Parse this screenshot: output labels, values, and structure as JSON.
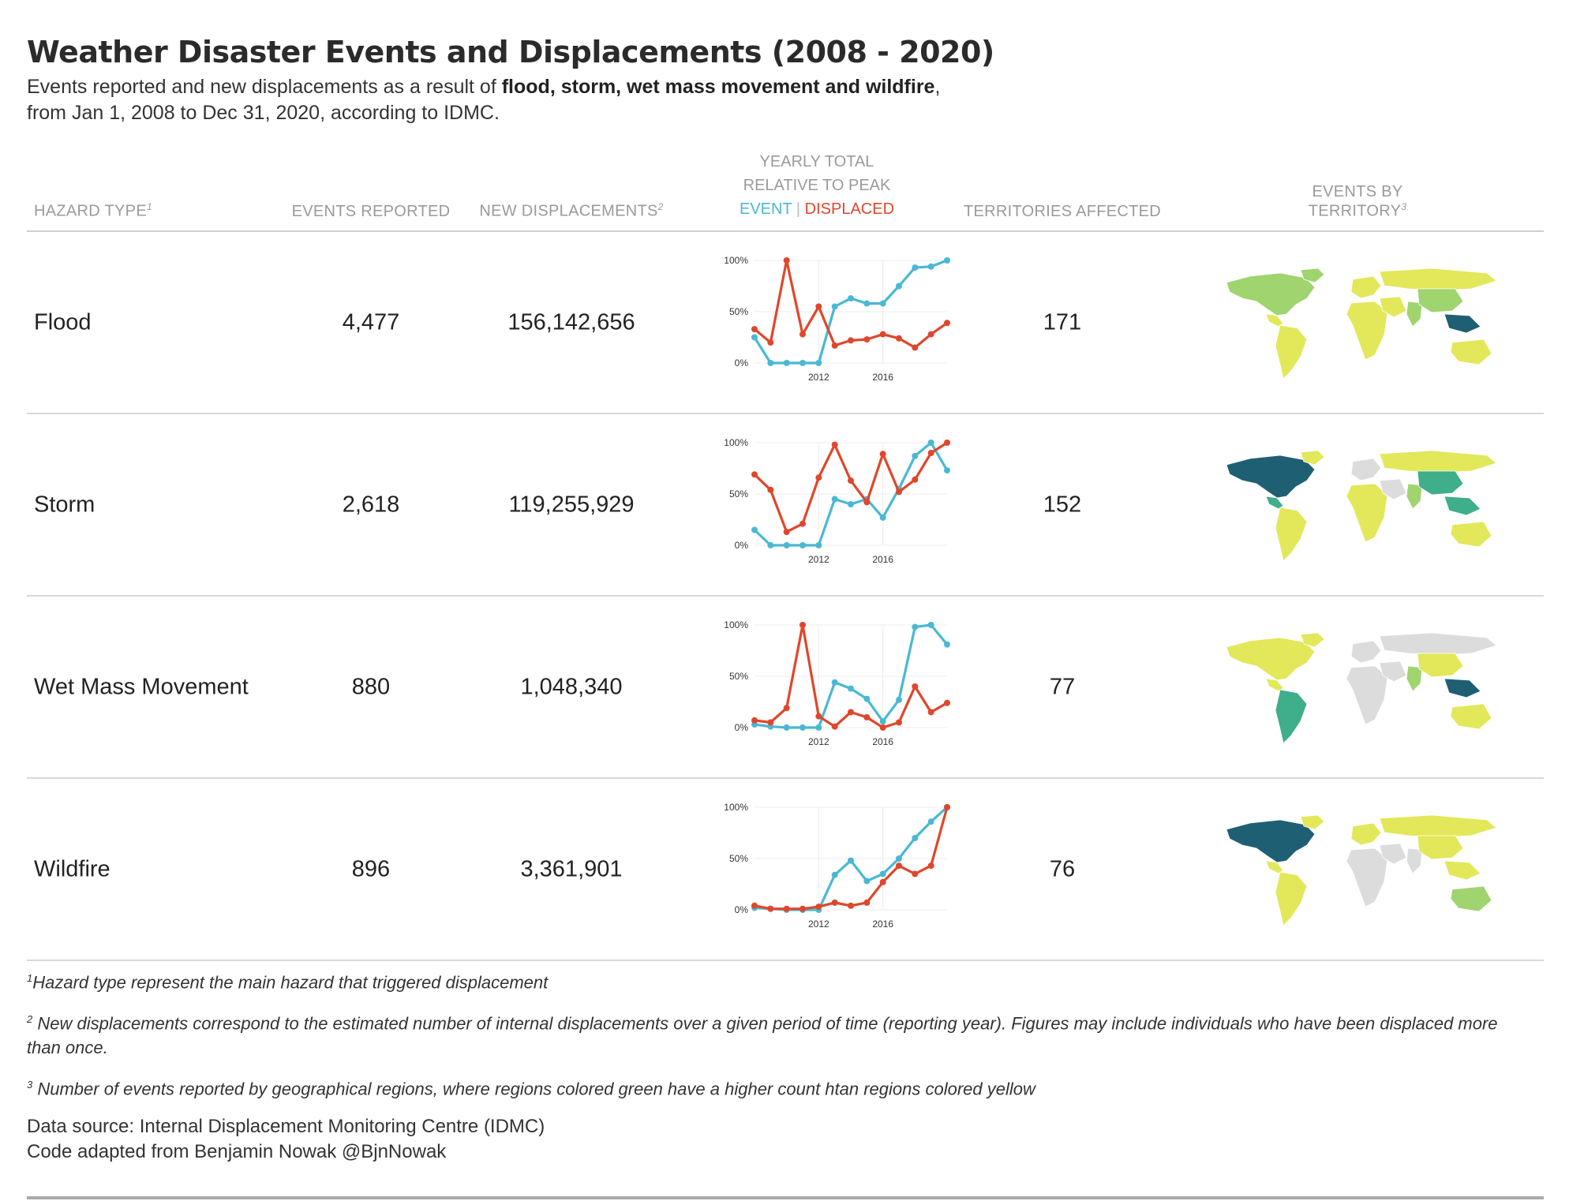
{
  "title": "Weather Disaster Events and Displacements (2008 - 2020)",
  "subtitle": {
    "pre": "Events reported and new displacements as a result of ",
    "bold": "flood, storm, wet mass movement and wildfire",
    "post": ",",
    "line2": "from Jan 1, 2008 to Dec 31, 2020, according to IDMC."
  },
  "columns": {
    "hazard": "HAZARD TYPE",
    "hazard_sup": "1",
    "events": "EVENTS REPORTED",
    "displacements": "NEW DISPLACEMENTS",
    "displacements_sup": "2",
    "trend_line1": "YEARLY TOTAL",
    "trend_line2": "RELATIVE TO PEAK",
    "trend_event": "EVENT",
    "trend_sep": "|",
    "trend_displaced": "DISPLACED",
    "territories": "TERRITORIES AFFECTED",
    "map": "EVENTS BY TERRITORY",
    "map_sup": "3"
  },
  "colors": {
    "event": "#4ab8d4",
    "displaced": "#e0462b",
    "map_low": "#e2e85a",
    "map_mid": "#9fd46e",
    "map_high": "#3fae8a",
    "map_peak": "#1f5f73",
    "map_none": "#dcdcdc"
  },
  "rows": [
    {
      "hazard": "Flood",
      "events": "4,477",
      "displacements": "156,142,656",
      "territories": "171",
      "map_icon": "world-map-flood"
    },
    {
      "hazard": "Storm",
      "events": "2,618",
      "displacements": "119,255,929",
      "territories": "152",
      "map_icon": "world-map-storm"
    },
    {
      "hazard": "Wet Mass Movement",
      "events": "880",
      "displacements": "1,048,340",
      "territories": "77",
      "map_icon": "world-map-wet-mass-movement"
    },
    {
      "hazard": "Wildfire",
      "events": "896",
      "displacements": "3,361,901",
      "territories": "76",
      "map_icon": "world-map-wildfire"
    }
  ],
  "chart_data": [
    {
      "type": "line",
      "panel": "Flood",
      "x": [
        2008,
        2009,
        2010,
        2011,
        2012,
        2013,
        2014,
        2015,
        2016,
        2017,
        2018,
        2019,
        2020
      ],
      "xticks": [
        "2012",
        "2016"
      ],
      "yticks": [
        "0%",
        "50%",
        "100%"
      ],
      "ylim": [
        0,
        100
      ],
      "series": [
        {
          "name": "EVENT",
          "values": [
            25,
            0,
            0,
            0,
            0,
            55,
            63,
            58,
            58,
            75,
            93,
            94,
            100
          ]
        },
        {
          "name": "DISPLACED",
          "values": [
            33,
            20,
            100,
            28,
            55,
            17,
            22,
            23,
            28,
            24,
            15,
            28,
            39
          ]
        }
      ]
    },
    {
      "type": "line",
      "panel": "Storm",
      "x": [
        2008,
        2009,
        2010,
        2011,
        2012,
        2013,
        2014,
        2015,
        2016,
        2017,
        2018,
        2019,
        2020
      ],
      "xticks": [
        "2012",
        "2016"
      ],
      "yticks": [
        "0%",
        "50%",
        "100%"
      ],
      "ylim": [
        0,
        100
      ],
      "series": [
        {
          "name": "EVENT",
          "values": [
            15,
            0,
            0,
            0,
            0,
            45,
            40,
            45,
            27,
            55,
            87,
            100,
            73
          ]
        },
        {
          "name": "DISPLACED",
          "values": [
            69,
            54,
            13,
            21,
            66,
            98,
            63,
            42,
            89,
            52,
            64,
            90,
            100
          ]
        }
      ]
    },
    {
      "type": "line",
      "panel": "Wet Mass Movement",
      "x": [
        2008,
        2009,
        2010,
        2011,
        2012,
        2013,
        2014,
        2015,
        2016,
        2017,
        2018,
        2019,
        2020
      ],
      "xticks": [
        "2012",
        "2016"
      ],
      "yticks": [
        "0%",
        "50%",
        "100%"
      ],
      "ylim": [
        0,
        100
      ],
      "series": [
        {
          "name": "EVENT",
          "values": [
            3,
            1,
            0,
            0,
            0,
            44,
            38,
            28,
            6,
            27,
            98,
            100,
            81
          ]
        },
        {
          "name": "DISPLACED",
          "values": [
            7,
            5,
            19,
            100,
            11,
            1,
            15,
            10,
            0,
            5,
            40,
            15,
            24
          ]
        }
      ]
    },
    {
      "type": "line",
      "panel": "Wildfire",
      "x": [
        2008,
        2009,
        2010,
        2011,
        2012,
        2013,
        2014,
        2015,
        2016,
        2017,
        2018,
        2019,
        2020
      ],
      "xticks": [
        "2012",
        "2016"
      ],
      "yticks": [
        "0%",
        "50%",
        "100%"
      ],
      "ylim": [
        0,
        100
      ],
      "series": [
        {
          "name": "EVENT",
          "values": [
            2,
            1,
            0,
            0,
            0,
            34,
            48,
            28,
            35,
            50,
            70,
            86,
            100
          ]
        },
        {
          "name": "DISPLACED",
          "values": [
            4,
            1,
            1,
            1,
            3,
            7,
            4,
            7,
            27,
            43,
            35,
            43,
            100
          ]
        }
      ]
    }
  ],
  "notes": [
    {
      "sup": "1",
      "text": "Hazard type represent the main hazard that triggered displacement"
    },
    {
      "sup": "2",
      "text": "New displacements correspond to the estimated number of internal displacements over a given period of time (reporting year). Figures may include individuals who have been displaced more than once."
    },
    {
      "sup": "3",
      "text": "Number of events reported by geographical regions, where regions colored green have a higher count htan regions colored yellow"
    }
  ],
  "source_line1": "Data source: Internal Displacement Monitoring Centre (IDMC)",
  "source_line2": "Code adapted from Benjamin Nowak @BjnNowak"
}
